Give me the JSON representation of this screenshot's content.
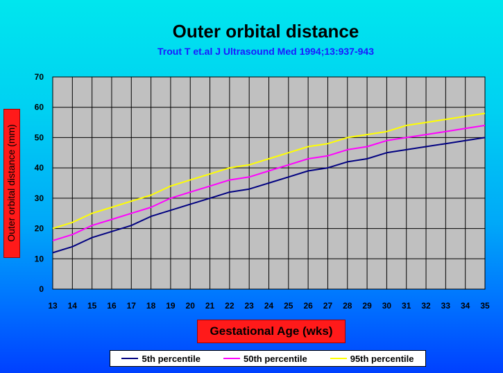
{
  "chart_data": {
    "type": "line",
    "title": "Outer orbital distance",
    "subtitle": "Trout T et.al J Ultrasound Med 1994;13:937-943",
    "xlabel": "Gestational Age (wks)",
    "ylabel": "Outer orbital distance (mm)",
    "x": [
      13,
      14,
      15,
      16,
      17,
      18,
      19,
      20,
      21,
      22,
      23,
      24,
      25,
      26,
      27,
      28,
      29,
      30,
      31,
      32,
      33,
      34,
      35
    ],
    "ylim": [
      0,
      70
    ],
    "yticks": [
      0,
      10,
      20,
      30,
      40,
      50,
      60,
      70
    ],
    "grid": true,
    "legend_position": "bottom",
    "series": [
      {
        "name": "5th percentile",
        "color": "#000080",
        "values": [
          12,
          14,
          17,
          19,
          21,
          24,
          26,
          28,
          30,
          32,
          33,
          35,
          37,
          39,
          40,
          42,
          43,
          45,
          46,
          47,
          48,
          49,
          50
        ]
      },
      {
        "name": "50th percentile",
        "color": "#ff00ff",
        "values": [
          16,
          18,
          21,
          23,
          25,
          27,
          30,
          32,
          34,
          36,
          37,
          39,
          41,
          43,
          44,
          46,
          47,
          49,
          50,
          51,
          52,
          53,
          54
        ]
      },
      {
        "name": "95th percentile",
        "color": "#ffff00",
        "values": [
          20,
          22,
          25,
          27,
          29,
          31,
          34,
          36,
          38,
          40,
          41,
          43,
          45,
          47,
          48,
          50,
          51,
          52,
          54,
          55,
          56,
          57,
          58
        ]
      }
    ]
  }
}
